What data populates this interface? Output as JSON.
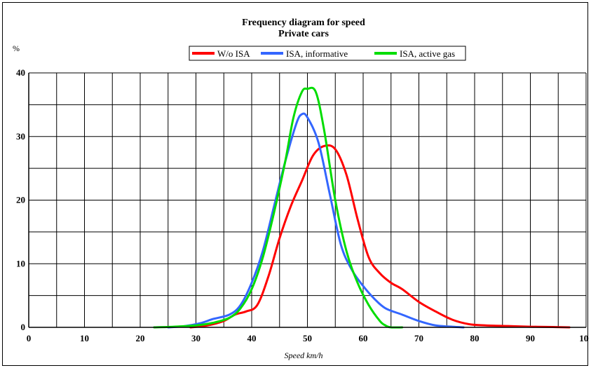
{
  "chart_data": {
    "type": "line",
    "title": "Frequency diagram for speed",
    "subtitle": "Private cars",
    "ylabel": "%",
    "xlabel": "Speed km/h",
    "xlim": [
      0,
      100
    ],
    "ylim": [
      0,
      40
    ],
    "x_ticks": [
      "0",
      "10",
      "20",
      "30",
      "40",
      "50",
      "60",
      "70",
      "80",
      "90",
      "100"
    ],
    "y_ticks": [
      "0",
      "10",
      "20",
      "30",
      "40"
    ],
    "grid": true,
    "legend_position": "top-center",
    "series": [
      {
        "name": "W/o ISA",
        "color": "#ff0000",
        "x": [
          29,
          32,
          35,
          37,
          39,
          41,
          43,
          45,
          47,
          49,
          51,
          53,
          55,
          57,
          59,
          61,
          63,
          65,
          67,
          70,
          73,
          76,
          79,
          82,
          86,
          90,
          94,
          97
        ],
        "y": [
          0,
          0.3,
          1,
          2,
          2.5,
          3.5,
          8,
          14,
          19,
          23,
          27,
          28.5,
          28,
          24,
          17,
          11,
          8.5,
          7,
          6,
          4,
          2.5,
          1.2,
          0.5,
          0.3,
          0.2,
          0.1,
          0.05,
          0
        ]
      },
      {
        "name": "ISA, informative",
        "color": "#3366ff",
        "x": [
          25,
          28,
          31,
          33,
          36,
          38,
          40,
          42,
          44,
          46,
          48,
          49,
          50,
          52,
          54,
          56,
          58,
          60,
          62,
          64,
          67,
          70,
          73,
          76,
          78
        ],
        "y": [
          0,
          0.2,
          0.7,
          1.3,
          2,
          3.5,
          7,
          12,
          19,
          26,
          32,
          33.5,
          33,
          29,
          21,
          13,
          9,
          6.5,
          4.5,
          3,
          2,
          1,
          0.3,
          0.1,
          0
        ]
      },
      {
        "name": "ISA, active gas",
        "color": "#00dd00",
        "x": [
          22.5,
          26,
          30,
          33,
          36,
          38,
          40,
          42,
          44,
          46,
          47.5,
          49,
          50,
          51.5,
          53,
          55,
          57,
          59,
          61,
          63,
          64,
          65,
          67
        ],
        "y": [
          0,
          0.1,
          0.3,
          0.7,
          1.5,
          3,
          6,
          11,
          18,
          26,
          33,
          37,
          37.5,
          37,
          31,
          20,
          12,
          7,
          3.5,
          1,
          0.3,
          0,
          0
        ]
      }
    ]
  }
}
